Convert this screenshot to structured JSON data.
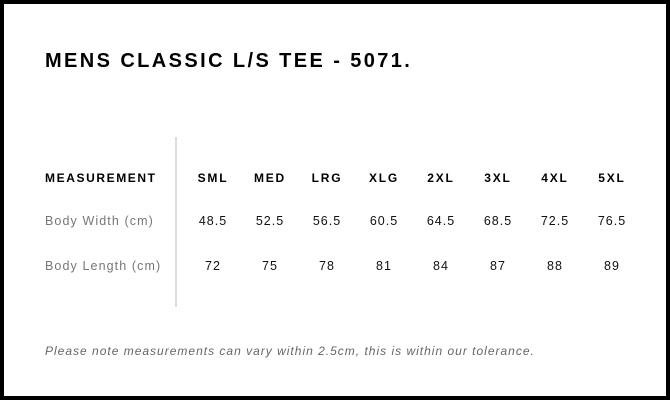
{
  "title": "MENS CLASSIC L/S TEE - 5071.",
  "table": {
    "header": {
      "label": "MEASUREMENT",
      "sizes": [
        "SML",
        "MED",
        "LRG",
        "XLG",
        "2XL",
        "3XL",
        "4XL",
        "5XL"
      ]
    },
    "rows": [
      {
        "label": "Body Width (cm)",
        "values": [
          "48.5",
          "52.5",
          "56.5",
          "60.5",
          "64.5",
          "68.5",
          "72.5",
          "76.5"
        ]
      },
      {
        "label": "Body Length (cm)",
        "values": [
          "72",
          "75",
          "78",
          "81",
          "84",
          "87",
          "88",
          "89"
        ]
      }
    ]
  },
  "note": "Please note measurements can vary within 2.5cm, this is within our tolerance."
}
